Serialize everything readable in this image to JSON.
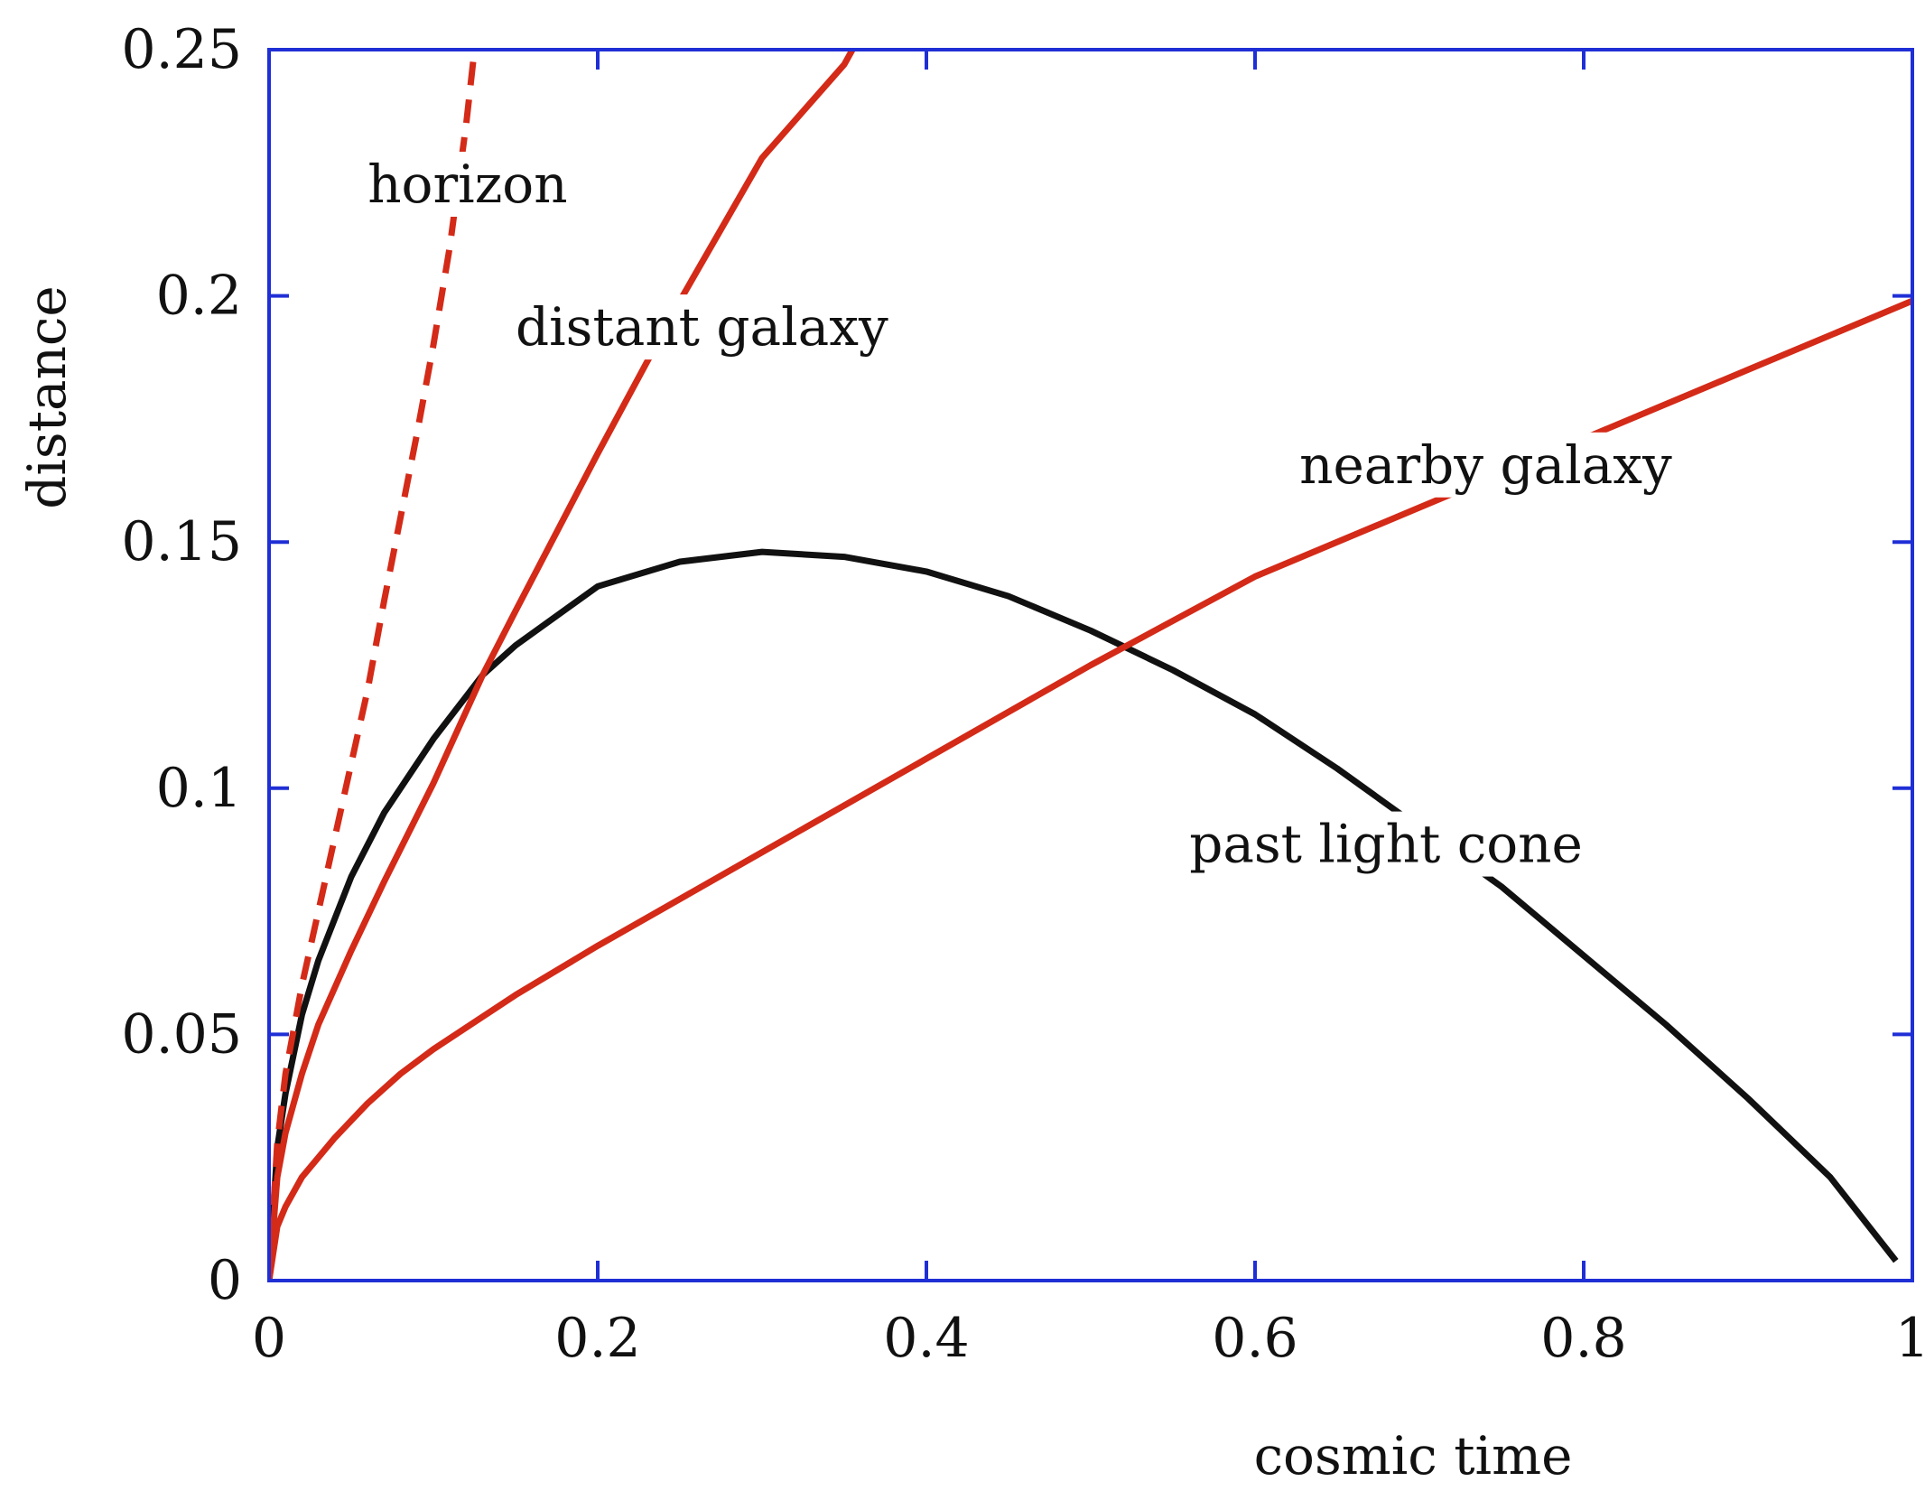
{
  "chart_data": {
    "type": "line",
    "title": "",
    "xlabel": "cosmic time",
    "ylabel": "distance",
    "xlim": [
      0,
      1
    ],
    "ylim": [
      0,
      0.25
    ],
    "xticks": [
      "0",
      "0.2",
      "0.4",
      "0.6",
      "0.8",
      "1"
    ],
    "yticks": [
      "0",
      "0.05",
      "0.1",
      "0.15",
      "0.2",
      "0.25"
    ],
    "grid": false,
    "legend": "none",
    "frame_color": "#1f2fd6",
    "series": [
      {
        "color": "#111111",
        "dashed": false,
        "x": [
          0,
          0.005,
          0.01,
          0.02,
          0.03,
          0.05,
          0.07,
          0.1,
          0.13,
          0.15,
          0.2,
          0.25,
          0.3,
          0.35,
          0.4,
          0.45,
          0.5,
          0.55,
          0.6,
          0.65,
          0.7,
          0.75,
          0.8,
          0.85,
          0.9,
          0.95,
          0.99
        ],
        "y": [
          0,
          0.027,
          0.038,
          0.054,
          0.065,
          0.082,
          0.095,
          0.11,
          0.123,
          0.129,
          0.141,
          0.146,
          0.148,
          0.147,
          0.144,
          0.139,
          0.132,
          0.124,
          0.115,
          0.104,
          0.092,
          0.08,
          0.066,
          0.052,
          0.037,
          0.021,
          0.004
        ]
      },
      {
        "color": "#d42a18",
        "dashed": false,
        "x": [
          0,
          0.005,
          0.01,
          0.02,
          0.03,
          0.05,
          0.07,
          0.1,
          0.13,
          0.15,
          0.2,
          0.25,
          0.3,
          0.35,
          0.355
        ],
        "y": [
          0,
          0.021,
          0.03,
          0.042,
          0.052,
          0.067,
          0.081,
          0.101,
          0.123,
          0.136,
          0.168,
          0.199,
          0.228,
          0.247,
          0.25
        ]
      },
      {
        "color": "#d42a18",
        "dashed": false,
        "x": [
          0,
          0.005,
          0.01,
          0.02,
          0.04,
          0.06,
          0.08,
          0.1,
          0.15,
          0.2,
          0.3,
          0.4,
          0.5,
          0.6,
          0.7,
          0.8,
          0.9,
          1.0
        ],
        "y": [
          0,
          0.011,
          0.015,
          0.021,
          0.029,
          0.036,
          0.042,
          0.047,
          0.058,
          0.068,
          0.087,
          0.106,
          0.125,
          0.143,
          0.157,
          0.171,
          0.185,
          0.199
        ]
      },
      {
        "color": "#d42a18",
        "dashed": true,
        "x": [
          0,
          0.005,
          0.01,
          0.02,
          0.03,
          0.04,
          0.05,
          0.06,
          0.07,
          0.08,
          0.09,
          0.1,
          0.11,
          0.12,
          0.125
        ],
        "y": [
          0,
          0.028,
          0.042,
          0.06,
          0.075,
          0.09,
          0.105,
          0.12,
          0.138,
          0.155,
          0.172,
          0.19,
          0.21,
          0.235,
          0.25
        ]
      }
    ],
    "annotations": [
      {
        "text": "horizon",
        "x": 0.06,
        "y": 0.219
      },
      {
        "text": "distant galaxy",
        "x": 0.15,
        "y": 0.19
      },
      {
        "text": "nearby galaxy",
        "x": 0.627,
        "y": 0.162
      },
      {
        "text": "past light cone",
        "x": 0.56,
        "y": 0.085
      }
    ]
  }
}
